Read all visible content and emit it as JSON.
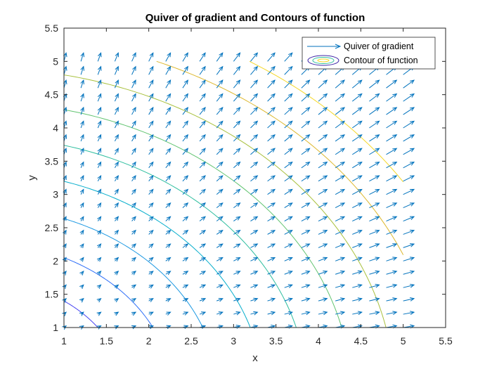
{
  "chart_data": {
    "type": "quiver+contour",
    "title": "Quiver of gradient and Contours of function",
    "xlabel": "x",
    "ylabel": "y",
    "xlim": [
      1,
      5.5
    ],
    "ylim": [
      1,
      5.5
    ],
    "xticks": [
      "1",
      "1.5",
      "2",
      "2.5",
      "3",
      "3.5",
      "4",
      "4.5",
      "5",
      "5.5"
    ],
    "yticks": [
      "1",
      "1.5",
      "2",
      "2.5",
      "3",
      "3.5",
      "4",
      "4.5",
      "5",
      "5.5"
    ],
    "grid": false,
    "legend": {
      "placement": "top-right",
      "entries": [
        "Quiver of gradient",
        "Contour of function"
      ]
    },
    "quiver": {
      "name": "Quiver of gradient",
      "color": "#0072BD",
      "x_range": [
        1,
        5,
        0.2
      ],
      "y_range": [
        1,
        5,
        0.2
      ],
      "field": "gradient of x^2 + y^2",
      "autoscale_factor": 0.9
    },
    "contours": {
      "name": "Contour of function",
      "function": "x^2 + y^2",
      "domain_max": 5,
      "levels": [
        {
          "radius": 1.1,
          "color": "#3E26A8"
        },
        {
          "radius": 1.72,
          "color": "#4743F2"
        },
        {
          "radius": 2.28,
          "color": "#2D6EF8"
        },
        {
          "radius": 2.82,
          "color": "#1B98E2"
        },
        {
          "radius": 3.35,
          "color": "#06AECC"
        },
        {
          "radius": 3.87,
          "color": "#2EBE9F"
        },
        {
          "radius": 4.39,
          "color": "#62C471"
        },
        {
          "radius": 4.9,
          "color": "#A8C03C"
        },
        {
          "radius": 5.42,
          "color": "#DDB82E"
        },
        {
          "radius": 5.93,
          "color": "#F5D828"
        }
      ]
    }
  }
}
